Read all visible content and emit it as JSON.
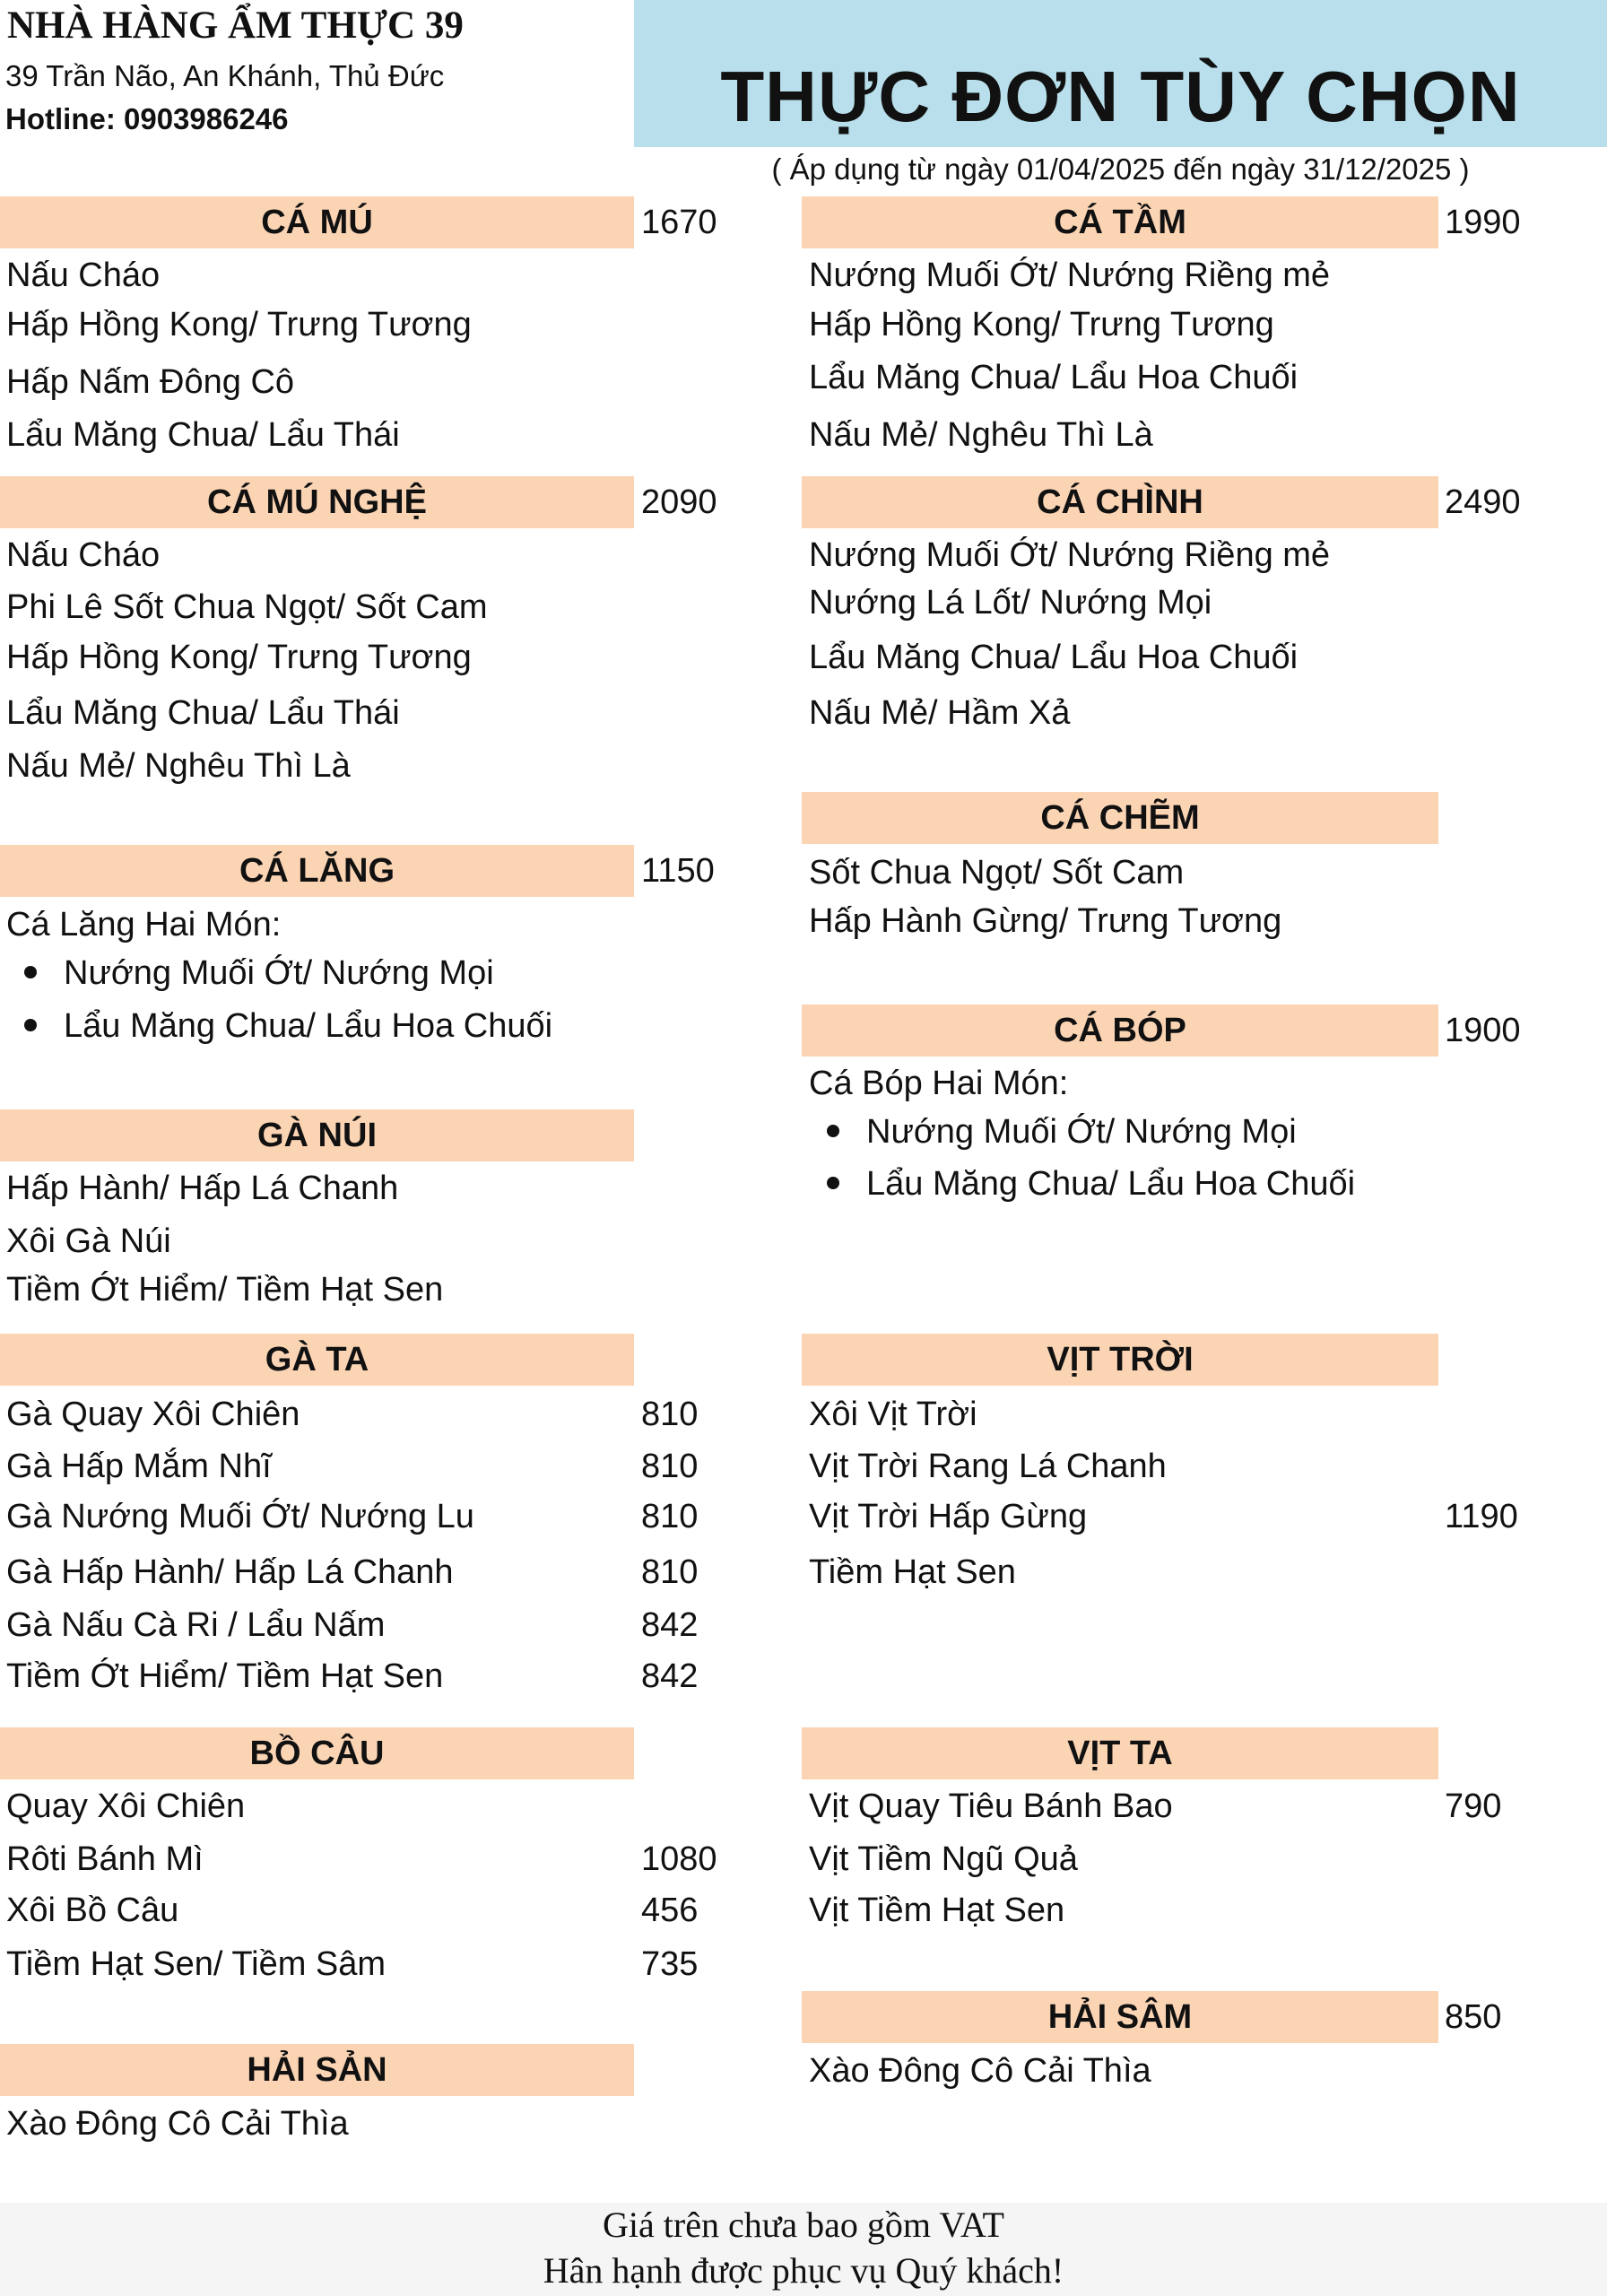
{
  "header": {
    "restaurant_name": "NHÀ HÀNG ẨM THỰC 39",
    "address": "39 Trần Não, An Khánh, Thủ Đức",
    "hotline": "Hotline: 0903986246",
    "title": "THỰC ĐƠN TÙY CHỌN",
    "date_range": "( Áp dụng từ ngày 01/04/2025 đến ngày 31/12/2025 )"
  },
  "colors": {
    "title_band": "#b8dfeb",
    "section_bar": "#fbd4b4",
    "footer_band": "#f5f5f5"
  },
  "left_column": [
    {
      "title": "CÁ MÚ",
      "price": "1670",
      "items": [
        {
          "text": "Nấu Cháo"
        },
        {
          "text": "Hấp Hồng Kong/ Trưng Tương"
        },
        {
          "text": "Hấp Nấm Đông Cô"
        },
        {
          "text": "Lẩu Măng Chua/ Lẩu Thái"
        }
      ]
    },
    {
      "title": "CÁ MÚ NGHỆ",
      "price": "2090",
      "items": [
        {
          "text": "Nấu Cháo"
        },
        {
          "text": "Phi Lê Sốt Chua Ngọt/ Sốt Cam"
        },
        {
          "text": "Hấp Hồng Kong/ Trưng Tương"
        },
        {
          "text": "Lẩu Măng Chua/ Lẩu Thái"
        },
        {
          "text": "Nấu Mẻ/ Nghêu Thì Là"
        }
      ]
    },
    {
      "title": "CÁ LĂNG",
      "price": "1150",
      "items": [
        {
          "text": "Cá Lăng Hai Món:"
        },
        {
          "text": "Nướng Muối Ớt/ Nướng Mọi",
          "bullet": true
        },
        {
          "text": "Lẩu Măng Chua/ Lẩu Hoa Chuối",
          "bullet": true
        }
      ]
    },
    {
      "title": "GÀ NÚI",
      "items": [
        {
          "text": "Hấp Hành/ Hấp Lá Chanh"
        },
        {
          "text": "Xôi Gà Núi"
        },
        {
          "text": "Tiềm Ớt Hiểm/ Tiềm Hạt Sen"
        }
      ]
    },
    {
      "title": "GÀ TA",
      "items": [
        {
          "text": "Gà Quay Xôi Chiên",
          "price": "810"
        },
        {
          "text": "Gà Hấp Mắm Nhĩ",
          "price": "810"
        },
        {
          "text": "Gà Nướng Muối Ớt/ Nướng Lu",
          "price": "810"
        },
        {
          "text": "Gà Hấp Hành/ Hấp Lá Chanh",
          "price": "810"
        },
        {
          "text": "Gà Nấu Cà Ri / Lẩu Nấm",
          "price": "842"
        },
        {
          "text": "Tiềm Ớt Hiểm/ Tiềm Hạt Sen",
          "price": "842"
        }
      ]
    },
    {
      "title": "BỒ CÂU",
      "items": [
        {
          "text": "Quay Xôi Chiên"
        },
        {
          "text": "Rôti Bánh Mì",
          "price": "1080"
        },
        {
          "text": "Xôi Bồ Câu",
          "price": "456"
        },
        {
          "text": "Tiềm Hạt Sen/ Tiềm Sâm",
          "price": "735"
        }
      ]
    },
    {
      "title": "HẢI SẢN",
      "items": [
        {
          "text": "Xào Đông Cô Cải Thìa"
        }
      ]
    }
  ],
  "right_column": [
    {
      "title": "CÁ TẦM",
      "price": "1990",
      "items": [
        {
          "text": "Nướng Muối Ớt/ Nướng Riềng mẻ"
        },
        {
          "text": "Hấp Hồng Kong/ Trưng Tương"
        },
        {
          "text": "Lẩu Măng Chua/ Lẩu Hoa Chuối"
        },
        {
          "text": "Nấu Mẻ/ Nghêu Thì Là"
        }
      ]
    },
    {
      "title": "CÁ CHÌNH",
      "price": "2490",
      "items": [
        {
          "text": "Nướng Muối Ớt/ Nướng Riềng mẻ"
        },
        {
          "text": "Nướng Lá Lốt/ Nướng Mọi"
        },
        {
          "text": "Lẩu Măng Chua/ Lẩu Hoa Chuối"
        },
        {
          "text": "Nấu Mẻ/ Hầm Xả"
        }
      ]
    },
    {
      "title": "CÁ CHẼM",
      "items": [
        {
          "text": "Sốt Chua Ngọt/ Sốt Cam"
        },
        {
          "text": "Hấp Hành Gừng/ Trưng Tương"
        }
      ]
    },
    {
      "title": "CÁ BÓP",
      "price": "1900",
      "items": [
        {
          "text": "Cá Bóp Hai Món:"
        },
        {
          "text": "Nướng Muối Ớt/ Nướng Mọi",
          "bullet": true
        },
        {
          "text": "Lẩu Măng Chua/ Lẩu Hoa Chuối",
          "bullet": true
        }
      ]
    },
    {
      "title": "VỊT TRỜI",
      "items": [
        {
          "text": "Xôi Vịt Trời"
        },
        {
          "text": "Vịt Trời Rang Lá Chanh"
        },
        {
          "text": "Vịt Trời Hấp Gừng",
          "price": "1190"
        },
        {
          "text": "Tiềm Hạt Sen"
        }
      ]
    },
    {
      "title": "VỊT TA",
      "items": [
        {
          "text": "Vịt Quay Tiêu Bánh Bao",
          "price": "790"
        },
        {
          "text": "Vịt Tiềm Ngũ Quả"
        },
        {
          "text": "Vịt Tiềm Hạt Sen"
        }
      ]
    },
    {
      "title": "HẢI SÂM",
      "price": "850",
      "items": [
        {
          "text": "Xào Đông Cô Cải Thìa"
        }
      ]
    }
  ],
  "footer": {
    "vat_note": "Giá trên chưa bao gồm VAT",
    "thanks": "Hân hạnh được phục vụ Quý khách!"
  }
}
